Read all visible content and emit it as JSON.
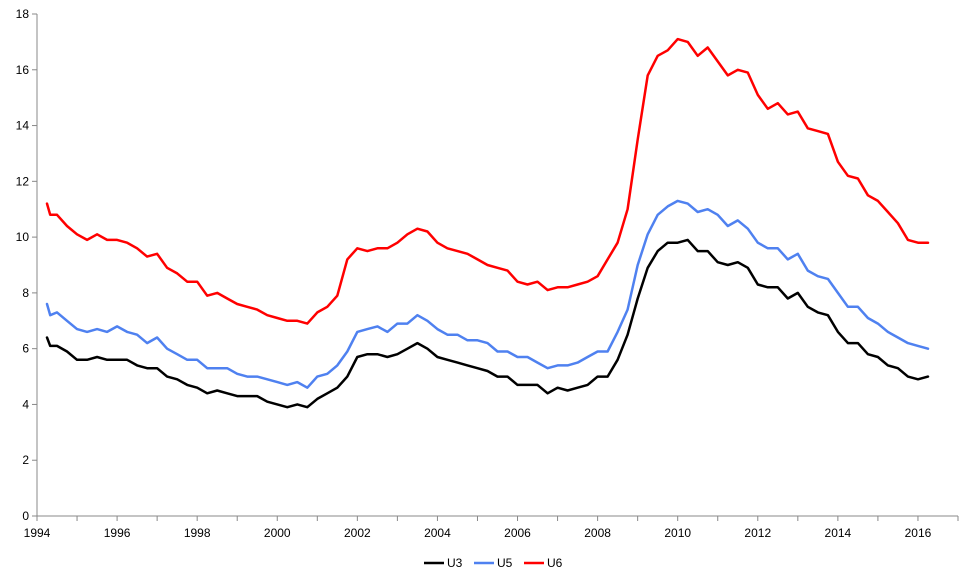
{
  "chart_data": {
    "type": "line",
    "title": "",
    "xlabel": "",
    "ylabel": "",
    "xlim": [
      1994,
      2017
    ],
    "ylim": [
      0,
      18
    ],
    "y_ticks": [
      0,
      2,
      4,
      6,
      8,
      10,
      12,
      14,
      16,
      18
    ],
    "x_ticks": [
      1994,
      1996,
      1998,
      2000,
      2002,
      2004,
      2006,
      2008,
      2010,
      2012,
      2014,
      2016
    ],
    "x_grid": false,
    "y_grid": false,
    "legend_position": "bottom",
    "series": [
      {
        "name": "U3",
        "color": "#000000",
        "points": [
          [
            1994.25,
            6.4
          ],
          [
            1994.33,
            6.1
          ],
          [
            1994.5,
            6.1
          ],
          [
            1994.75,
            5.9
          ],
          [
            1995.0,
            5.6
          ],
          [
            1995.25,
            5.6
          ],
          [
            1995.5,
            5.7
          ],
          [
            1995.75,
            5.6
          ],
          [
            1996.0,
            5.6
          ],
          [
            1996.25,
            5.6
          ],
          [
            1996.5,
            5.4
          ],
          [
            1996.75,
            5.3
          ],
          [
            1997.0,
            5.3
          ],
          [
            1997.25,
            5.0
          ],
          [
            1997.5,
            4.9
          ],
          [
            1997.75,
            4.7
          ],
          [
            1998.0,
            4.6
          ],
          [
            1998.25,
            4.4
          ],
          [
            1998.5,
            4.5
          ],
          [
            1998.75,
            4.4
          ],
          [
            1999.0,
            4.3
          ],
          [
            1999.25,
            4.3
          ],
          [
            1999.5,
            4.3
          ],
          [
            1999.75,
            4.1
          ],
          [
            2000.0,
            4.0
          ],
          [
            2000.25,
            3.9
          ],
          [
            2000.5,
            4.0
          ],
          [
            2000.75,
            3.9
          ],
          [
            2001.0,
            4.2
          ],
          [
            2001.25,
            4.4
          ],
          [
            2001.5,
            4.6
          ],
          [
            2001.75,
            5.0
          ],
          [
            2002.0,
            5.7
          ],
          [
            2002.25,
            5.8
          ],
          [
            2002.5,
            5.8
          ],
          [
            2002.75,
            5.7
          ],
          [
            2003.0,
            5.8
          ],
          [
            2003.25,
            6.0
          ],
          [
            2003.5,
            6.2
          ],
          [
            2003.75,
            6.0
          ],
          [
            2004.0,
            5.7
          ],
          [
            2004.25,
            5.6
          ],
          [
            2004.5,
            5.5
          ],
          [
            2004.75,
            5.4
          ],
          [
            2005.0,
            5.3
          ],
          [
            2005.25,
            5.2
          ],
          [
            2005.5,
            5.0
          ],
          [
            2005.75,
            5.0
          ],
          [
            2006.0,
            4.7
          ],
          [
            2006.25,
            4.7
          ],
          [
            2006.5,
            4.7
          ],
          [
            2006.75,
            4.4
          ],
          [
            2007.0,
            4.6
          ],
          [
            2007.25,
            4.5
          ],
          [
            2007.5,
            4.6
          ],
          [
            2007.75,
            4.7
          ],
          [
            2008.0,
            5.0
          ],
          [
            2008.25,
            5.0
          ],
          [
            2008.5,
            5.6
          ],
          [
            2008.75,
            6.5
          ],
          [
            2009.0,
            7.8
          ],
          [
            2009.25,
            8.9
          ],
          [
            2009.5,
            9.5
          ],
          [
            2009.75,
            9.8
          ],
          [
            2010.0,
            9.8
          ],
          [
            2010.25,
            9.9
          ],
          [
            2010.5,
            9.5
          ],
          [
            2010.75,
            9.5
          ],
          [
            2011.0,
            9.1
          ],
          [
            2011.25,
            9.0
          ],
          [
            2011.5,
            9.1
          ],
          [
            2011.75,
            8.9
          ],
          [
            2012.0,
            8.3
          ],
          [
            2012.25,
            8.2
          ],
          [
            2012.5,
            8.2
          ],
          [
            2012.75,
            7.8
          ],
          [
            2013.0,
            8.0
          ],
          [
            2013.25,
            7.5
          ],
          [
            2013.5,
            7.3
          ],
          [
            2013.75,
            7.2
          ],
          [
            2014.0,
            6.6
          ],
          [
            2014.25,
            6.2
          ],
          [
            2014.5,
            6.2
          ],
          [
            2014.75,
            5.8
          ],
          [
            2015.0,
            5.7
          ],
          [
            2015.25,
            5.4
          ],
          [
            2015.5,
            5.3
          ],
          [
            2015.75,
            5.0
          ],
          [
            2016.0,
            4.9
          ],
          [
            2016.25,
            5.0
          ]
        ]
      },
      {
        "name": "U5",
        "color": "#4f81f0",
        "points": [
          [
            1994.25,
            7.6
          ],
          [
            1994.33,
            7.2
          ],
          [
            1994.5,
            7.3
          ],
          [
            1994.75,
            7.0
          ],
          [
            1995.0,
            6.7
          ],
          [
            1995.25,
            6.6
          ],
          [
            1995.5,
            6.7
          ],
          [
            1995.75,
            6.6
          ],
          [
            1996.0,
            6.8
          ],
          [
            1996.25,
            6.6
          ],
          [
            1996.5,
            6.5
          ],
          [
            1996.75,
            6.2
          ],
          [
            1997.0,
            6.4
          ],
          [
            1997.25,
            6.0
          ],
          [
            1997.5,
            5.8
          ],
          [
            1997.75,
            5.6
          ],
          [
            1998.0,
            5.6
          ],
          [
            1998.25,
            5.3
          ],
          [
            1998.5,
            5.3
          ],
          [
            1998.75,
            5.3
          ],
          [
            1999.0,
            5.1
          ],
          [
            1999.25,
            5.0
          ],
          [
            1999.5,
            5.0
          ],
          [
            1999.75,
            4.9
          ],
          [
            2000.0,
            4.8
          ],
          [
            2000.25,
            4.7
          ],
          [
            2000.5,
            4.8
          ],
          [
            2000.75,
            4.6
          ],
          [
            2001.0,
            5.0
          ],
          [
            2001.25,
            5.1
          ],
          [
            2001.5,
            5.4
          ],
          [
            2001.75,
            5.9
          ],
          [
            2002.0,
            6.6
          ],
          [
            2002.25,
            6.7
          ],
          [
            2002.5,
            6.8
          ],
          [
            2002.75,
            6.6
          ],
          [
            2003.0,
            6.9
          ],
          [
            2003.25,
            6.9
          ],
          [
            2003.5,
            7.2
          ],
          [
            2003.75,
            7.0
          ],
          [
            2004.0,
            6.7
          ],
          [
            2004.25,
            6.5
          ],
          [
            2004.5,
            6.5
          ],
          [
            2004.75,
            6.3
          ],
          [
            2005.0,
            6.3
          ],
          [
            2005.25,
            6.2
          ],
          [
            2005.5,
            5.9
          ],
          [
            2005.75,
            5.9
          ],
          [
            2006.0,
            5.7
          ],
          [
            2006.25,
            5.7
          ],
          [
            2006.5,
            5.5
          ],
          [
            2006.75,
            5.3
          ],
          [
            2007.0,
            5.4
          ],
          [
            2007.25,
            5.4
          ],
          [
            2007.5,
            5.5
          ],
          [
            2007.75,
            5.7
          ],
          [
            2008.0,
            5.9
          ],
          [
            2008.25,
            5.9
          ],
          [
            2008.5,
            6.6
          ],
          [
            2008.75,
            7.4
          ],
          [
            2009.0,
            9.0
          ],
          [
            2009.25,
            10.1
          ],
          [
            2009.5,
            10.8
          ],
          [
            2009.75,
            11.1
          ],
          [
            2010.0,
            11.3
          ],
          [
            2010.25,
            11.2
          ],
          [
            2010.5,
            10.9
          ],
          [
            2010.75,
            11.0
          ],
          [
            2011.0,
            10.8
          ],
          [
            2011.25,
            10.4
          ],
          [
            2011.5,
            10.6
          ],
          [
            2011.75,
            10.3
          ],
          [
            2012.0,
            9.8
          ],
          [
            2012.25,
            9.6
          ],
          [
            2012.5,
            9.6
          ],
          [
            2012.75,
            9.2
          ],
          [
            2013.0,
            9.4
          ],
          [
            2013.25,
            8.8
          ],
          [
            2013.5,
            8.6
          ],
          [
            2013.75,
            8.5
          ],
          [
            2014.0,
            8.0
          ],
          [
            2014.25,
            7.5
          ],
          [
            2014.5,
            7.5
          ],
          [
            2014.75,
            7.1
          ],
          [
            2015.0,
            6.9
          ],
          [
            2015.25,
            6.6
          ],
          [
            2015.5,
            6.4
          ],
          [
            2015.75,
            6.2
          ],
          [
            2016.0,
            6.1
          ],
          [
            2016.25,
            6.0
          ]
        ]
      },
      {
        "name": "U6",
        "color": "#ff0000",
        "points": [
          [
            1994.25,
            11.2
          ],
          [
            1994.33,
            10.8
          ],
          [
            1994.5,
            10.8
          ],
          [
            1994.75,
            10.4
          ],
          [
            1995.0,
            10.1
          ],
          [
            1995.25,
            9.9
          ],
          [
            1995.5,
            10.1
          ],
          [
            1995.75,
            9.9
          ],
          [
            1996.0,
            9.9
          ],
          [
            1996.25,
            9.8
          ],
          [
            1996.5,
            9.6
          ],
          [
            1996.75,
            9.3
          ],
          [
            1997.0,
            9.4
          ],
          [
            1997.25,
            8.9
          ],
          [
            1997.5,
            8.7
          ],
          [
            1997.75,
            8.4
          ],
          [
            1998.0,
            8.4
          ],
          [
            1998.25,
            7.9
          ],
          [
            1998.5,
            8.0
          ],
          [
            1998.75,
            7.8
          ],
          [
            1999.0,
            7.6
          ],
          [
            1999.25,
            7.5
          ],
          [
            1999.5,
            7.4
          ],
          [
            1999.75,
            7.2
          ],
          [
            2000.0,
            7.1
          ],
          [
            2000.25,
            7.0
          ],
          [
            2000.5,
            7.0
          ],
          [
            2000.75,
            6.9
          ],
          [
            2001.0,
            7.3
          ],
          [
            2001.25,
            7.5
          ],
          [
            2001.5,
            7.9
          ],
          [
            2001.75,
            9.2
          ],
          [
            2002.0,
            9.6
          ],
          [
            2002.25,
            9.5
          ],
          [
            2002.5,
            9.6
          ],
          [
            2002.75,
            9.6
          ],
          [
            2003.0,
            9.8
          ],
          [
            2003.25,
            10.1
          ],
          [
            2003.5,
            10.3
          ],
          [
            2003.75,
            10.2
          ],
          [
            2004.0,
            9.8
          ],
          [
            2004.25,
            9.6
          ],
          [
            2004.5,
            9.5
          ],
          [
            2004.75,
            9.4
          ],
          [
            2005.0,
            9.2
          ],
          [
            2005.25,
            9.0
          ],
          [
            2005.5,
            8.9
          ],
          [
            2005.75,
            8.8
          ],
          [
            2006.0,
            8.4
          ],
          [
            2006.25,
            8.3
          ],
          [
            2006.5,
            8.4
          ],
          [
            2006.75,
            8.1
          ],
          [
            2007.0,
            8.2
          ],
          [
            2007.25,
            8.2
          ],
          [
            2007.5,
            8.3
          ],
          [
            2007.75,
            8.4
          ],
          [
            2008.0,
            8.6
          ],
          [
            2008.25,
            9.2
          ],
          [
            2008.5,
            9.8
          ],
          [
            2008.75,
            11.0
          ],
          [
            2009.0,
            13.5
          ],
          [
            2009.25,
            15.8
          ],
          [
            2009.5,
            16.5
          ],
          [
            2009.75,
            16.7
          ],
          [
            2010.0,
            17.1
          ],
          [
            2010.25,
            17.0
          ],
          [
            2010.5,
            16.5
          ],
          [
            2010.75,
            16.8
          ],
          [
            2011.0,
            16.3
          ],
          [
            2011.25,
            15.8
          ],
          [
            2011.5,
            16.0
          ],
          [
            2011.75,
            15.9
          ],
          [
            2012.0,
            15.1
          ],
          [
            2012.25,
            14.6
          ],
          [
            2012.5,
            14.8
          ],
          [
            2012.75,
            14.4
          ],
          [
            2013.0,
            14.5
          ],
          [
            2013.25,
            13.9
          ],
          [
            2013.5,
            13.8
          ],
          [
            2013.75,
            13.7
          ],
          [
            2014.0,
            12.7
          ],
          [
            2014.25,
            12.2
          ],
          [
            2014.5,
            12.1
          ],
          [
            2014.75,
            11.5
          ],
          [
            2015.0,
            11.3
          ],
          [
            2015.25,
            10.9
          ],
          [
            2015.5,
            10.5
          ],
          [
            2015.75,
            9.9
          ],
          [
            2016.0,
            9.8
          ],
          [
            2016.25,
            9.8
          ]
        ]
      }
    ]
  }
}
